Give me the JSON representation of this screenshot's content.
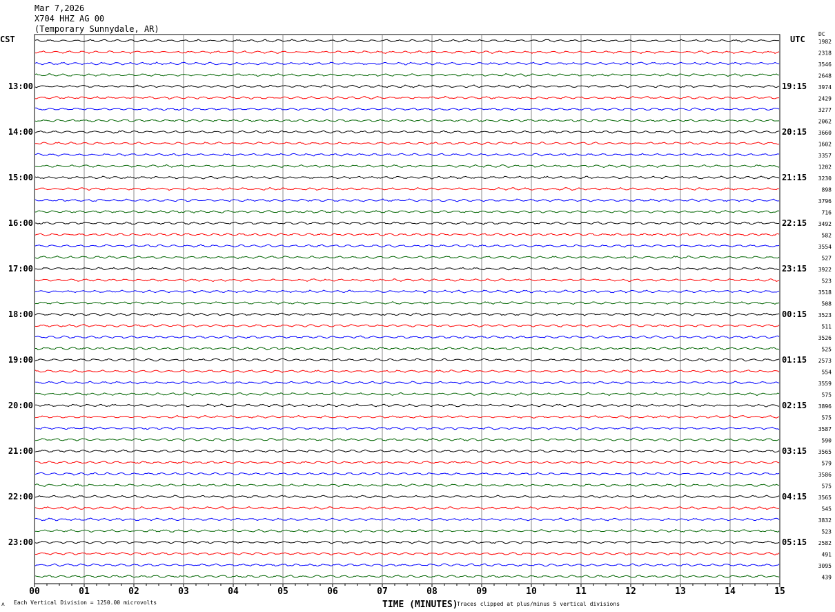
{
  "header": {
    "date": "Mar 7,2026",
    "station": "X704 HHZ AG 00",
    "location": "(Temporary Sunnydale, AR)"
  },
  "left_zone_label": "CST",
  "right_zone_label": "UTC",
  "dc_label": "DC",
  "footer": {
    "scale_note": "Each Vertical Division = 1250.00 microvolts",
    "xlabel": "TIME (MINUTES)",
    "clip_note": "Traces clipped at plus/minus 5 vertical divisions",
    "corner_mark": "ʌ"
  },
  "chart_data": {
    "type": "line",
    "title": "",
    "xlabel": "TIME (MINUTES)",
    "xlim": [
      0,
      15
    ],
    "x_ticks": [
      "00",
      "01",
      "02",
      "03",
      "04",
      "05",
      "06",
      "07",
      "08",
      "09",
      "10",
      "11",
      "12",
      "13",
      "14",
      "15"
    ],
    "grid": "vertical lines each minute",
    "trace_colors": [
      "#000000",
      "#ff0000",
      "#0000ff",
      "#006400"
    ],
    "rows_per_hour": 4,
    "left_hour_labels": [
      "13:00",
      "14:00",
      "15:00",
      "16:00",
      "17:00",
      "18:00",
      "19:00",
      "20:00",
      "21:00",
      "22:00",
      "23:00"
    ],
    "right_hour_labels": [
      "19:15",
      "20:15",
      "21:15",
      "22:15",
      "23:15",
      "00:15",
      "01:15",
      "02:15",
      "03:15",
      "04:15",
      "05:15"
    ],
    "dc_offsets": [
      "1982",
      "2318",
      "3546",
      "2648",
      "3974",
      "2429",
      "3277",
      "2062",
      "3660",
      "1602",
      "3357",
      "1202",
      "3230",
      "898",
      "3796",
      "716",
      "3492",
      "582",
      "3554",
      "527",
      "3922",
      "523",
      "3518",
      "508",
      "3523",
      "511",
      "3526",
      "525",
      "2573",
      "554",
      "3559",
      "575",
      "3896",
      "575",
      "3587",
      "590",
      "3565",
      "579",
      "3586",
      "575",
      "3565",
      "545",
      "3832",
      "523",
      "2582",
      "491",
      "3095",
      "439"
    ]
  }
}
